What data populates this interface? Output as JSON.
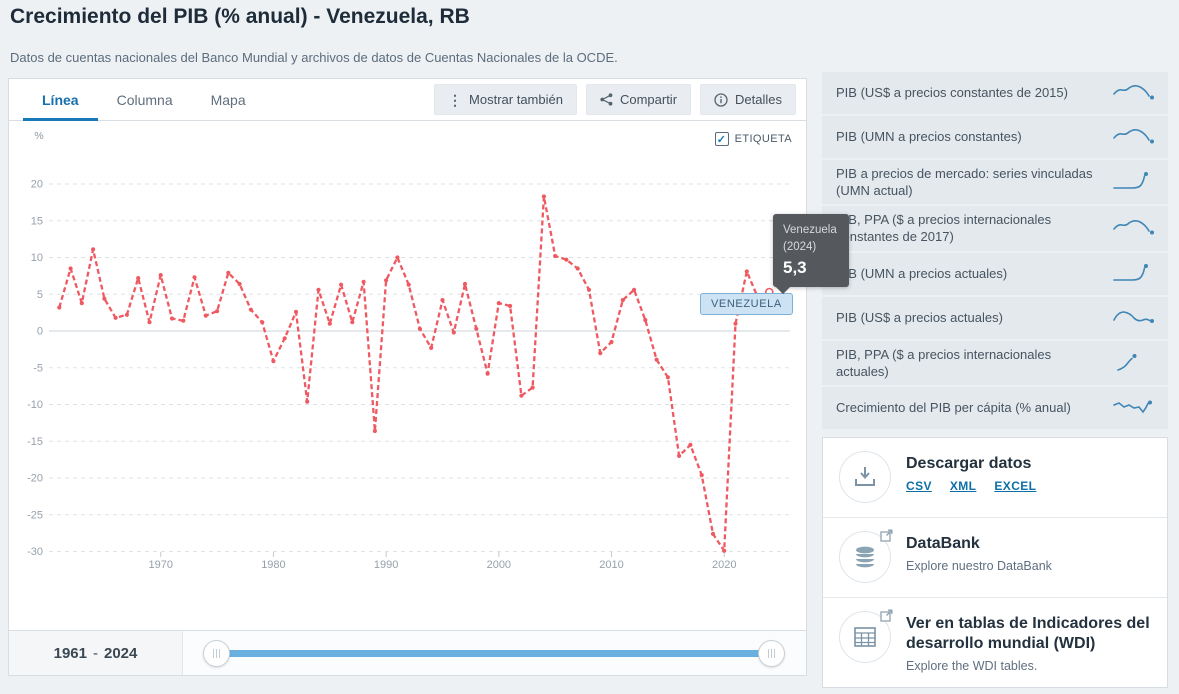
{
  "page": {
    "title": "Crecimiento del PIB (% anual) - Venezuela, RB",
    "subtitle": "Datos de cuentas nacionales del Banco Mundial y archivos de datos de Cuentas Nacionales de la OCDE."
  },
  "chart_panel": {
    "tabs": [
      {
        "label": "Línea",
        "active": true
      },
      {
        "label": "Columna",
        "active": false
      },
      {
        "label": "Mapa",
        "active": false
      }
    ],
    "buttons": [
      {
        "label": "Mostrar también",
        "icon": "kebab-dots-icon"
      },
      {
        "label": "Compartir",
        "icon": "share-icon"
      },
      {
        "label": "Detalles",
        "icon": "info-icon"
      }
    ],
    "label_checkbox": {
      "label": "ETIQUETA",
      "checked": true
    },
    "series_label": "VENEZUELA",
    "tooltip": {
      "country": "Venezuela",
      "year": "(2024)",
      "value": "5,3"
    },
    "unit_label": "%"
  },
  "chart_data": {
    "type": "line",
    "title": "Crecimiento del PIB (% anual) - Venezuela, RB",
    "ylabel": "%",
    "xlabel": "",
    "ylim": [
      -30,
      20
    ],
    "yticks": [
      20,
      15,
      10,
      5,
      0,
      -5,
      -10,
      -15,
      -20,
      -25,
      -30
    ],
    "xticks": [
      1970,
      1980,
      1990,
      2000,
      2010,
      2020
    ],
    "grid": true,
    "line_style": "dashed-with-dots",
    "line_color": "#ee5a61",
    "series": [
      {
        "name": "Venezuela",
        "years": [
          1961,
          1962,
          1963,
          1964,
          1965,
          1966,
          1967,
          1968,
          1969,
          1970,
          1971,
          1972,
          1973,
          1974,
          1975,
          1976,
          1977,
          1978,
          1979,
          1980,
          1981,
          1982,
          1983,
          1984,
          1985,
          1986,
          1987,
          1988,
          1989,
          1990,
          1991,
          1992,
          1993,
          1994,
          1995,
          1996,
          1997,
          1998,
          1999,
          2000,
          2001,
          2002,
          2003,
          2004,
          2005,
          2006,
          2007,
          2008,
          2009,
          2010,
          2011,
          2012,
          2013,
          2014,
          2015,
          2016,
          2017,
          2018,
          2019,
          2020,
          2021,
          2022,
          2023,
          2024
        ],
        "values": [
          3.2,
          8.5,
          3.8,
          11.1,
          4.4,
          1.8,
          2.2,
          7.2,
          1.2,
          7.6,
          1.7,
          1.4,
          7.3,
          2.1,
          2.7,
          7.9,
          6.4,
          2.9,
          1.2,
          -4.1,
          -1.0,
          2.6,
          -9.6,
          5.6,
          1.0,
          6.3,
          1.2,
          6.7,
          -13.6,
          6.9,
          10.0,
          6.3,
          0.3,
          -2.3,
          4.2,
          -0.2,
          6.4,
          0.3,
          -5.8,
          3.8,
          3.4,
          -8.8,
          -7.7,
          18.3,
          10.2,
          9.7,
          8.5,
          5.6,
          -3.0,
          -1.5,
          4.2,
          5.6,
          1.5,
          -3.9,
          -6.3,
          -17.0,
          -15.5,
          -19.6,
          -27.6,
          -29.9,
          1.0,
          8.1,
          4.5,
          5.3
        ]
      }
    ],
    "last_point_label": {
      "country": "Venezuela",
      "year": 2024,
      "value_display": "5,3"
    }
  },
  "range_bar": {
    "start": "1961",
    "separator": "-",
    "end": "2024"
  },
  "sidebar": {
    "items": [
      {
        "label": "PIB (US$ a precios constantes de 2015)",
        "icon": "sparkline-wave-down-icon"
      },
      {
        "label": "PIB (UMN a precios constantes)",
        "icon": "sparkline-wave-down-icon"
      },
      {
        "label": "PIB a precios de mercado: series vinculadas (UMN actual)",
        "icon": "sparkline-hockey-stick-icon"
      },
      {
        "label": "PIB, PPA ($ a precios internacionales constantes de 2017)",
        "icon": "sparkline-wave-down-icon"
      },
      {
        "label": "PIB (UMN a precios actuales)",
        "icon": "sparkline-hockey-stick-icon"
      },
      {
        "label": "PIB (US$ a precios actuales)",
        "icon": "sparkline-hump-icon"
      },
      {
        "label": "PIB, PPA ($ a precios internacionales actuales)",
        "icon": "sparkline-rise-icon"
      },
      {
        "label": "Crecimiento del PIB per cápita (% anual)",
        "icon": "sparkline-zigzag-icon"
      }
    ]
  },
  "download_card": {
    "sections": [
      {
        "title": "Descargar datos",
        "icon": "download-icon",
        "external": false,
        "links": [
          "CSV",
          "XML",
          "EXCEL"
        ]
      },
      {
        "title": "DataBank",
        "subtitle": "Explore nuestro DataBank",
        "icon": "database-icon",
        "external": true
      },
      {
        "title": "Ver en tablas de Indicadores del desarrollo mundial (WDI)",
        "subtitle": "Explore the WDI tables.",
        "icon": "table-icon",
        "external": true
      }
    ]
  },
  "colors": {
    "accent_blue": "#1779b8",
    "line_red": "#ee5a61",
    "slider_blue": "#69b0e0",
    "link_blue": "#0d6fa7",
    "tooltip_bg": "#55595e",
    "sidebar_item_bg": "#e4e9ee"
  }
}
